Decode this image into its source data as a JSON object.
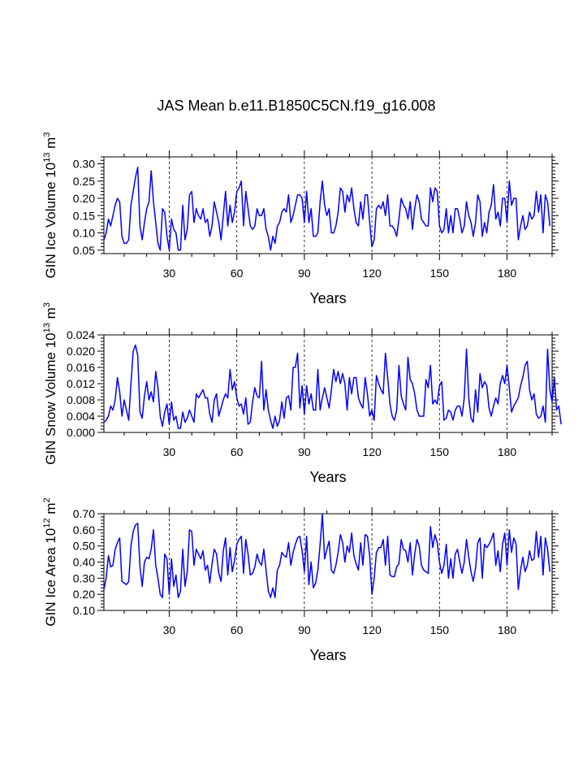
{
  "page": {
    "title": "JAS Mean b.e11.B1850C5CN.f19_g16.008"
  },
  "panels": [
    {
      "ylabel_main": "GIN Ice Volume 10",
      "ylabel_exp": "13",
      "ylabel_unit": " m",
      "ylabel_unit_exp": "3",
      "xlabel": "Years"
    },
    {
      "ylabel_main": "GIN Snow Volume 10",
      "ylabel_exp": "13",
      "ylabel_unit": " m",
      "ylabel_unit_exp": "3",
      "xlabel": "Years"
    },
    {
      "ylabel_main": "GIN Ice Area 10",
      "ylabel_exp": "12",
      "ylabel_unit": " m",
      "ylabel_unit_exp": "2",
      "xlabel": "Years"
    }
  ],
  "chart_data": [
    {
      "type": "line",
      "title": "JAS Mean b.e11.B1850C5CN.f19_g16.008",
      "xlabel": "Years",
      "ylabel": "GIN Ice Volume 10^13 m^3",
      "xlim": [
        1,
        200
      ],
      "ylim": [
        0.04,
        0.32
      ],
      "xticks": [
        30,
        60,
        90,
        120,
        150,
        180
      ],
      "xtick_labels": [
        "30",
        "60",
        "90",
        "120",
        "150",
        "180"
      ],
      "yticks": [
        0.05,
        0.1,
        0.15,
        0.2,
        0.25,
        0.3
      ],
      "ytick_labels": [
        "0.05",
        "0.10",
        "0.15",
        "0.20",
        "0.25",
        "0.30"
      ],
      "ydecimals": 2,
      "reference_lines_x": [
        30,
        60,
        90,
        120,
        150,
        180
      ],
      "series": [
        {
          "name": "GIN Ice Volume",
          "color": "#0000ff",
          "x_start": 1,
          "x_step": 1,
          "values": [
            0.08,
            0.1,
            0.14,
            0.12,
            0.15,
            0.18,
            0.2,
            0.19,
            0.09,
            0.07,
            0.07,
            0.08,
            0.18,
            0.22,
            0.26,
            0.29,
            0.12,
            0.08,
            0.13,
            0.17,
            0.19,
            0.28,
            0.19,
            0.13,
            0.07,
            0.05,
            0.17,
            0.16,
            0.09,
            0.05,
            0.14,
            0.11,
            0.1,
            0.05,
            0.05,
            0.18,
            0.08,
            0.11,
            0.21,
            0.22,
            0.13,
            0.17,
            0.15,
            0.14,
            0.17,
            0.13,
            0.14,
            0.09,
            0.12,
            0.19,
            0.16,
            0.13,
            0.08,
            0.15,
            0.22,
            0.12,
            0.18,
            0.13,
            0.16,
            0.22,
            0.23,
            0.25,
            0.12,
            0.22,
            0.17,
            0.12,
            0.11,
            0.12,
            0.17,
            0.15,
            0.15,
            0.17,
            0.11,
            0.09,
            0.05,
            0.09,
            0.07,
            0.12,
            0.13,
            0.16,
            0.17,
            0.16,
            0.21,
            0.13,
            0.15,
            0.18,
            0.21,
            0.21,
            0.2,
            0.13,
            0.22,
            0.13,
            0.17,
            0.09,
            0.09,
            0.1,
            0.19,
            0.25,
            0.18,
            0.15,
            0.17,
            0.1,
            0.1,
            0.12,
            0.16,
            0.23,
            0.22,
            0.16,
            0.21,
            0.19,
            0.23,
            0.17,
            0.13,
            0.12,
            0.19,
            0.14,
            0.21,
            0.21,
            0.13,
            0.06,
            0.08,
            0.17,
            0.18,
            0.17,
            0.19,
            0.15,
            0.21,
            0.12,
            0.12,
            0.11,
            0.09,
            0.14,
            0.2,
            0.18,
            0.17,
            0.14,
            0.19,
            0.11,
            0.17,
            0.21,
            0.19,
            0.14,
            0.13,
            0.12,
            0.12,
            0.23,
            0.19,
            0.23,
            0.22,
            0.12,
            0.1,
            0.11,
            0.17,
            0.1,
            0.15,
            0.1,
            0.17,
            0.17,
            0.14,
            0.1,
            0.12,
            0.19,
            0.15,
            0.13,
            0.09,
            0.13,
            0.21,
            0.19,
            0.09,
            0.13,
            0.1,
            0.16,
            0.18,
            0.24,
            0.14,
            0.16,
            0.12,
            0.2,
            0.2,
            0.13,
            0.25,
            0.18,
            0.2,
            0.2,
            0.08,
            0.12,
            0.15,
            0.11,
            0.12,
            0.16,
            0.14,
            0.15,
            0.22,
            0.16,
            0.21,
            0.1,
            0.21,
            0.19,
            0.12
          ]
        }
      ]
    },
    {
      "type": "line",
      "xlabel": "Years",
      "ylabel": "GIN Snow Volume 10^13 m^3",
      "xlim": [
        1,
        200
      ],
      "ylim": [
        0.0,
        0.024
      ],
      "xticks": [
        30,
        60,
        90,
        120,
        150,
        180
      ],
      "xtick_labels": [
        "30",
        "60",
        "90",
        "120",
        "150",
        "180"
      ],
      "yticks": [
        0.0,
        0.004,
        0.008,
        0.012,
        0.016,
        0.02,
        0.024
      ],
      "ytick_labels": [
        "0.000",
        "0.004",
        "0.008",
        "0.012",
        "0.016",
        "0.020",
        "0.024"
      ],
      "ydecimals": 3,
      "reference_lines_x": [
        30,
        60,
        90,
        120,
        150,
        180
      ],
      "series": [
        {
          "name": "GIN Snow Volume",
          "color": "#0000ff",
          "x_start": 1,
          "x_step": 1,
          "values": [
            0.0025,
            0.003,
            0.004,
            0.0065,
            0.0055,
            0.008,
            0.0135,
            0.01,
            0.004,
            0.008,
            0.0055,
            0.003,
            0.012,
            0.02,
            0.0215,
            0.019,
            0.005,
            0.0035,
            0.009,
            0.0125,
            0.008,
            0.01,
            0.0075,
            0.015,
            0.011,
            0.004,
            0.0015,
            0.005,
            0.007,
            0.002,
            0.0075,
            0.003,
            0.004,
            0.001,
            0.001,
            0.005,
            0.0025,
            0.0035,
            0.0055,
            0.004,
            0.0025,
            0.0095,
            0.0085,
            0.0095,
            0.0105,
            0.0085,
            0.0085,
            0.0045,
            0.0025,
            0.008,
            0.0095,
            0.004,
            0.006,
            0.008,
            0.0095,
            0.0085,
            0.0155,
            0.0105,
            0.0125,
            0.0085,
            0.0065,
            0.007,
            0.0045,
            0.0085,
            0.002,
            0.0025,
            0.0075,
            0.011,
            0.009,
            0.0085,
            0.0175,
            0.0055,
            0.0105,
            0.0055,
            0.003,
            0.001,
            0.004,
            0.0015,
            0.003,
            0.0075,
            0.0035,
            0.0085,
            0.009,
            0.0055,
            0.016,
            0.016,
            0.0195,
            0.006,
            0.0115,
            0.0045,
            0.0115,
            0.007,
            0.0095,
            0.0055,
            0.0055,
            0.0155,
            0.0055,
            0.0085,
            0.011,
            0.0085,
            0.006,
            0.0105,
            0.0155,
            0.0125,
            0.015,
            0.012,
            0.0145,
            0.012,
            0.0055,
            0.0135,
            0.0095,
            0.0135,
            0.0135,
            0.0085,
            0.007,
            0.006,
            0.0135,
            0.0095,
            0.004,
            0.0055,
            0.003,
            0.014,
            0.012,
            0.0105,
            0.0095,
            0.0195,
            0.0135,
            0.007,
            0.004,
            0.003,
            0.0055,
            0.0165,
            0.009,
            0.007,
            0.0055,
            0.0185,
            0.013,
            0.012,
            0.0095,
            0.0055,
            0.004,
            0.004,
            0.004,
            0.013,
            0.011,
            0.0165,
            0.007,
            0.008,
            0.007,
            0.0115,
            0.0125,
            0.003,
            0.0035,
            0.0055,
            0.005,
            0.003,
            0.0055,
            0.0065,
            0.0065,
            0.004,
            0.0085,
            0.0205,
            0.0085,
            0.0035,
            0.0025,
            0.0105,
            0.005,
            0.0145,
            0.011,
            0.0125,
            0.0115,
            0.006,
            0.004,
            0.0065,
            0.0085,
            0.007,
            0.012,
            0.014,
            0.012,
            0.0165,
            0.011,
            0.005,
            0.0065,
            0.0075,
            0.0085,
            0.0115,
            0.0135,
            0.0165,
            0.0175,
            0.0105,
            0.008,
            0.0095,
            0.0045,
            0.0035,
            0.004,
            0.0065,
            0.0025,
            0.0205,
            0.0105,
            0.0075,
            0.0135,
            0.0055,
            0.0065,
            0.002
          ]
        }
      ]
    },
    {
      "type": "line",
      "xlabel": "Years",
      "ylabel": "GIN Ice Area 10^12 m^2",
      "xlim": [
        1,
        200
      ],
      "ylim": [
        0.1,
        0.7
      ],
      "xticks": [
        30,
        60,
        90,
        120,
        150,
        180
      ],
      "xtick_labels": [
        "30",
        "60",
        "90",
        "120",
        "150",
        "180"
      ],
      "yticks": [
        0.1,
        0.2,
        0.3,
        0.4,
        0.5,
        0.6,
        0.7
      ],
      "ytick_labels": [
        "0.10",
        "0.20",
        "0.30",
        "0.40",
        "0.50",
        "0.60",
        "0.70"
      ],
      "ydecimals": 2,
      "reference_lines_x": [
        30,
        60,
        90,
        120,
        150,
        180
      ],
      "series": [
        {
          "name": "GIN Ice Area",
          "color": "#0000ff",
          "x_start": 1,
          "x_step": 1,
          "values": [
            0.23,
            0.3,
            0.44,
            0.37,
            0.38,
            0.48,
            0.52,
            0.55,
            0.28,
            0.27,
            0.26,
            0.28,
            0.5,
            0.59,
            0.63,
            0.64,
            0.37,
            0.25,
            0.4,
            0.43,
            0.42,
            0.48,
            0.6,
            0.38,
            0.3,
            0.2,
            0.18,
            0.45,
            0.42,
            0.2,
            0.42,
            0.25,
            0.32,
            0.18,
            0.22,
            0.48,
            0.25,
            0.34,
            0.6,
            0.59,
            0.38,
            0.48,
            0.45,
            0.42,
            0.47,
            0.35,
            0.38,
            0.27,
            0.39,
            0.48,
            0.45,
            0.33,
            0.28,
            0.47,
            0.55,
            0.32,
            0.49,
            0.34,
            0.41,
            0.51,
            0.54,
            0.56,
            0.33,
            0.54,
            0.45,
            0.32,
            0.33,
            0.37,
            0.45,
            0.4,
            0.38,
            0.48,
            0.35,
            0.22,
            0.18,
            0.24,
            0.18,
            0.35,
            0.38,
            0.46,
            0.44,
            0.43,
            0.52,
            0.38,
            0.46,
            0.51,
            0.55,
            0.56,
            0.47,
            0.34,
            0.56,
            0.26,
            0.4,
            0.24,
            0.27,
            0.35,
            0.51,
            0.7,
            0.42,
            0.48,
            0.53,
            0.35,
            0.33,
            0.38,
            0.46,
            0.57,
            0.52,
            0.4,
            0.5,
            0.46,
            0.58,
            0.44,
            0.39,
            0.35,
            0.52,
            0.38,
            0.57,
            0.56,
            0.44,
            0.2,
            0.3,
            0.46,
            0.49,
            0.49,
            0.54,
            0.38,
            0.56,
            0.32,
            0.31,
            0.31,
            0.37,
            0.39,
            0.54,
            0.48,
            0.47,
            0.4,
            0.52,
            0.32,
            0.45,
            0.54,
            0.5,
            0.38,
            0.35,
            0.34,
            0.33,
            0.62,
            0.49,
            0.57,
            0.52,
            0.4,
            0.33,
            0.38,
            0.51,
            0.3,
            0.42,
            0.3,
            0.45,
            0.48,
            0.4,
            0.33,
            0.4,
            0.54,
            0.43,
            0.34,
            0.28,
            0.36,
            0.52,
            0.55,
            0.3,
            0.51,
            0.49,
            0.51,
            0.54,
            0.58,
            0.38,
            0.47,
            0.34,
            0.51,
            0.58,
            0.38,
            0.6,
            0.46,
            0.55,
            0.51,
            0.23,
            0.35,
            0.43,
            0.34,
            0.38,
            0.47,
            0.41,
            0.42,
            0.59,
            0.43,
            0.56,
            0.32,
            0.55,
            0.48,
            0.34
          ]
        }
      ]
    }
  ]
}
